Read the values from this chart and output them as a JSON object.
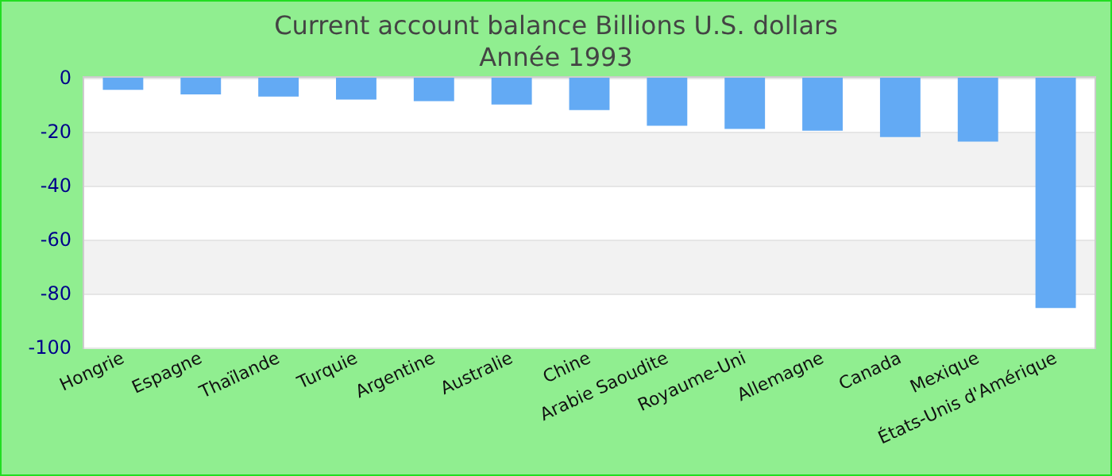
{
  "chart_data": {
    "type": "bar",
    "title": "Current account balance Billions U.S. dollars",
    "subtitle": "Année 1993",
    "categories": [
      "Hongrie",
      "Espagne",
      "Thaïlande",
      "Turquie",
      "Argentine",
      "Australie",
      "Chine",
      "Arabie Saoudite",
      "Royaume-Uni",
      "Allemagne",
      "Canada",
      "Mexique",
      "États-Unis d'Amérique"
    ],
    "values": [
      -4.5,
      -6.2,
      -7,
      -8.1,
      -8.7,
      -9.9,
      -12,
      -17.8,
      -19,
      -19.6,
      -22,
      -23.7,
      -85.4
    ],
    "color": "#63aaf4",
    "ylim": [
      -100,
      0
    ],
    "yticks": [
      -100,
      -80,
      -60,
      -40,
      -20,
      0
    ],
    "grid": "y"
  }
}
